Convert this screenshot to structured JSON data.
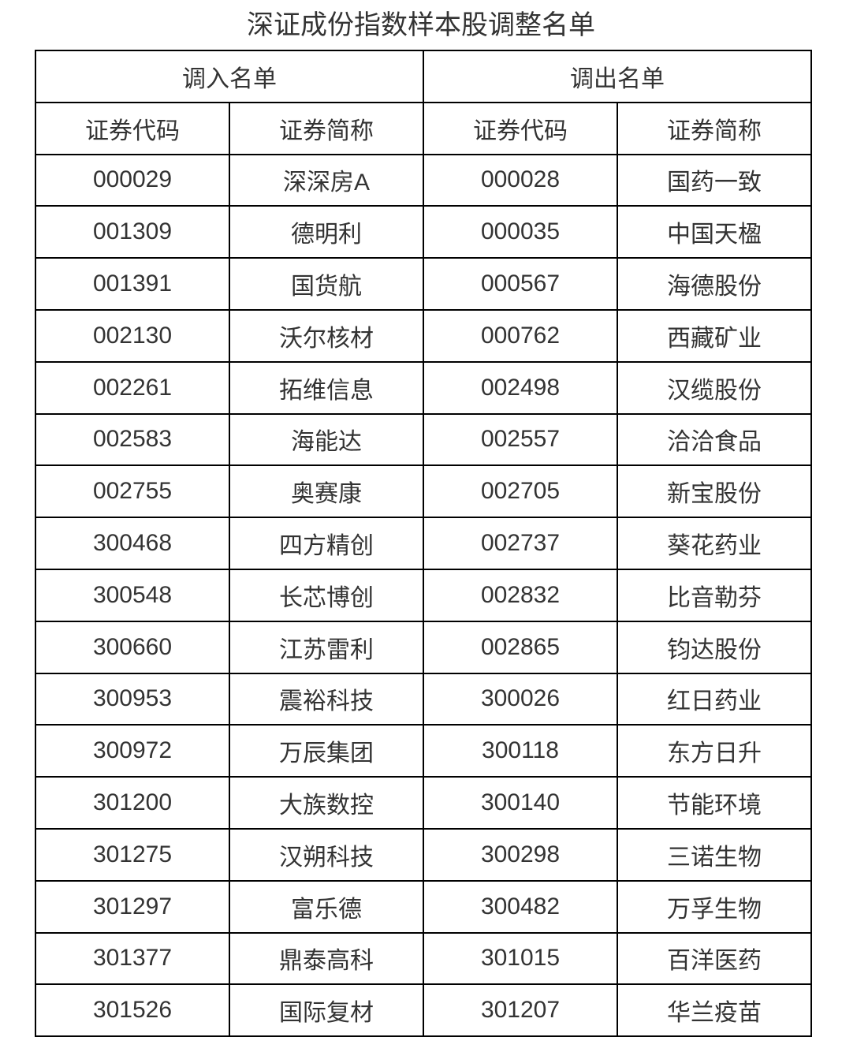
{
  "page": {
    "title": "深证成份指数样本股调整名单"
  },
  "colors": {
    "background": "#ffffff",
    "text": "#333333",
    "border": "#000000"
  },
  "table": {
    "group_headers": [
      {
        "label": "调入名单"
      },
      {
        "label": "调出名单"
      }
    ],
    "column_headers": [
      "证券代码",
      "证券简称",
      "证券代码",
      "证券简称"
    ],
    "rows": [
      {
        "in_code": "000029",
        "in_name": "深深房A",
        "out_code": "000028",
        "out_name": "国药一致"
      },
      {
        "in_code": "001309",
        "in_name": "德明利",
        "out_code": "000035",
        "out_name": "中国天楹"
      },
      {
        "in_code": "001391",
        "in_name": "国货航",
        "out_code": "000567",
        "out_name": "海德股份"
      },
      {
        "in_code": "002130",
        "in_name": "沃尔核材",
        "out_code": "000762",
        "out_name": "西藏矿业"
      },
      {
        "in_code": "002261",
        "in_name": "拓维信息",
        "out_code": "002498",
        "out_name": "汉缆股份"
      },
      {
        "in_code": "002583",
        "in_name": "海能达",
        "out_code": "002557",
        "out_name": "洽洽食品"
      },
      {
        "in_code": "002755",
        "in_name": "奥赛康",
        "out_code": "002705",
        "out_name": "新宝股份"
      },
      {
        "in_code": "300468",
        "in_name": "四方精创",
        "out_code": "002737",
        "out_name": "葵花药业"
      },
      {
        "in_code": "300548",
        "in_name": "长芯博创",
        "out_code": "002832",
        "out_name": "比音勒芬"
      },
      {
        "in_code": "300660",
        "in_name": "江苏雷利",
        "out_code": "002865",
        "out_name": "钧达股份"
      },
      {
        "in_code": "300953",
        "in_name": "震裕科技",
        "out_code": "300026",
        "out_name": "红日药业"
      },
      {
        "in_code": "300972",
        "in_name": "万辰集团",
        "out_code": "300118",
        "out_name": "东方日升"
      },
      {
        "in_code": "301200",
        "in_name": "大族数控",
        "out_code": "300140",
        "out_name": "节能环境"
      },
      {
        "in_code": "301275",
        "in_name": "汉朔科技",
        "out_code": "300298",
        "out_name": "三诺生物"
      },
      {
        "in_code": "301297",
        "in_name": "富乐德",
        "out_code": "300482",
        "out_name": "万孚生物"
      },
      {
        "in_code": "301377",
        "in_name": "鼎泰高科",
        "out_code": "301015",
        "out_name": "百洋医药"
      },
      {
        "in_code": "301526",
        "in_name": "国际复材",
        "out_code": "301207",
        "out_name": "华兰疫苗"
      }
    ]
  }
}
